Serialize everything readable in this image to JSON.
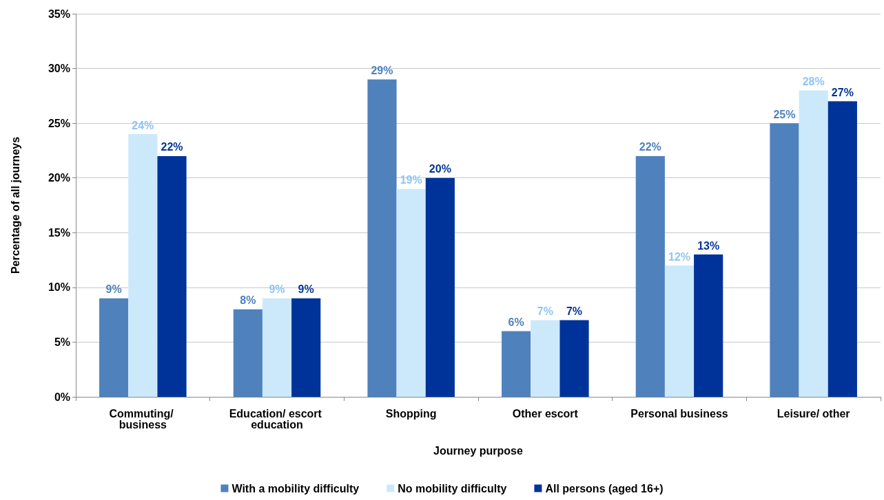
{
  "chart_data": {
    "type": "bar",
    "xlabel": "Journey purpose",
    "ylabel": "Percentage of all journeys",
    "categories": [
      "Commuting/ business",
      "Education/ escort education",
      "Shopping",
      "Other escort",
      "Personal business",
      "Leisure/ other"
    ],
    "series": [
      {
        "name": "With a mobility difficulty",
        "color": "#4f81bd",
        "values": [
          9,
          8,
          29,
          6,
          22,
          25
        ],
        "value_labels": [
          "9%",
          "8%",
          "29%",
          "6%",
          "22%",
          "25%"
        ]
      },
      {
        "name": "No mobility difficulty",
        "color": "#cce9fc",
        "values": [
          24,
          9,
          19,
          7,
          12,
          28
        ],
        "value_labels": [
          "24%",
          "9%",
          "19%",
          "7%",
          "12%",
          "28%"
        ]
      },
      {
        "name": "All persons (aged 16+)",
        "color": "#003399",
        "values": [
          22,
          9,
          20,
          7,
          13,
          27
        ],
        "value_labels": [
          "22%",
          "9%",
          "20%",
          "7%",
          "13%",
          "27%"
        ]
      }
    ],
    "ylim": [
      0,
      35
    ],
    "yticks": [
      {
        "value": 0,
        "label": "0%"
      },
      {
        "value": 5,
        "label": "5%"
      },
      {
        "value": 10,
        "label": "10%"
      },
      {
        "value": 15,
        "label": "15%"
      },
      {
        "value": 20,
        "label": "20%"
      },
      {
        "value": 25,
        "label": "25%"
      },
      {
        "value": 30,
        "label": "30%"
      },
      {
        "value": 35,
        "label": "35%"
      }
    ],
    "grid": "y",
    "legend": "bottom"
  }
}
